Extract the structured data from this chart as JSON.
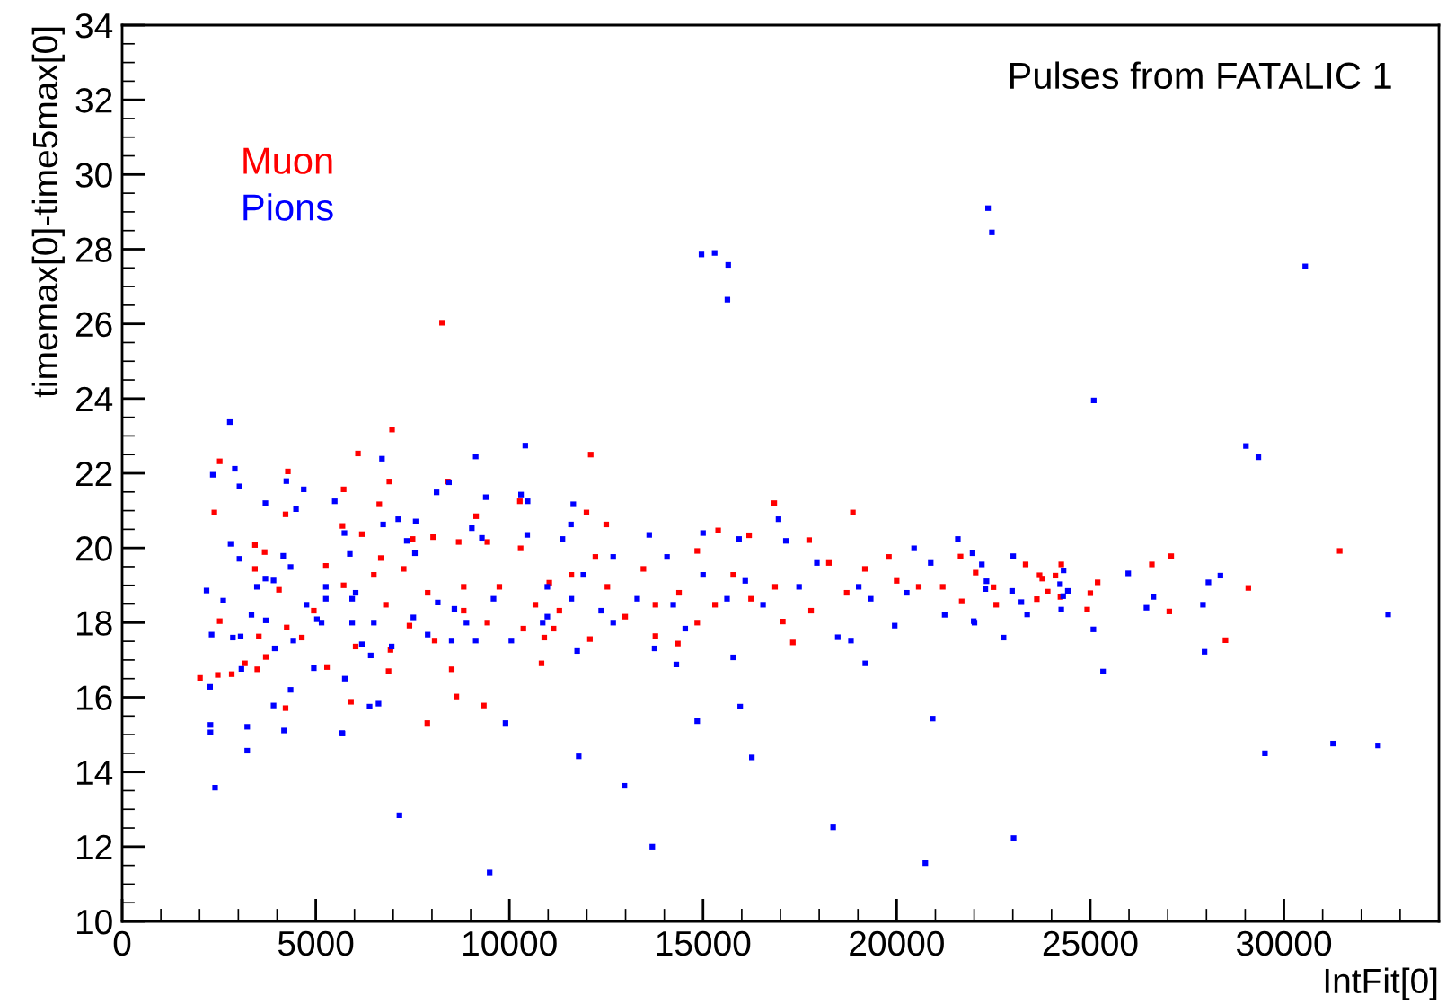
{
  "chart_data": {
    "type": "scatter",
    "title": "Pulses from FATALIC 1",
    "xlabel": "IntFit[0]",
    "ylabel": "timemax[0]-time5max[0]",
    "xlim": [
      0,
      34000
    ],
    "ylim": [
      10,
      34
    ],
    "xticks": [
      0,
      5000,
      10000,
      15000,
      20000,
      25000,
      30000
    ],
    "yticks": [
      10,
      12,
      14,
      16,
      18,
      20,
      22,
      24,
      26,
      28,
      30,
      32,
      34
    ],
    "grid": false,
    "legend": "top left",
    "marker": "square",
    "series": [
      {
        "name": "Muon",
        "color": "#ff0000",
        "x": [
          8260,
          31440,
          28490,
          7880,
          6970,
          6090,
          2520,
          2380,
          4280,
          6900,
          5720,
          8410,
          10270,
          6640,
          4220,
          3430,
          3680,
          3430,
          4050,
          5260,
          5690,
          6190,
          6680,
          7500,
          8030,
          8690,
          9140,
          9430,
          10290,
          2010,
          2520,
          2470,
          2830,
          3170,
          3490,
          3710,
          3530,
          4250,
          4220,
          5910,
          6880,
          6930,
          8630,
          9340,
          8510,
          8070,
          7420,
          6030,
          5290,
          4640,
          4950,
          5720,
          6500,
          7270,
          7890,
          8820,
          9740,
          10670,
          10360,
          9430,
          8820,
          6810,
          11030,
          10900,
          12100,
          16840,
          18870,
          11990,
          12500,
          15390,
          16190,
          17740,
          10830,
          17320,
          14350,
          13770,
          12080,
          17060,
          21650,
          21680,
          20000,
          20570,
          19180,
          18250,
          18710,
          17790,
          16860,
          16240,
          15780,
          15310,
          14850,
          14380,
          13770,
          13460,
          12990,
          12530,
          12220,
          11600,
          11290,
          11140,
          14850,
          19800,
          21190,
          22040,
          22500,
          23330,
          23690,
          23760,
          24100,
          24250,
          23900,
          23620,
          22570,
          24230,
          25190,
          25000,
          24920,
          26590,
          27090,
          27040,
          29080
        ],
        "values": [
          26.03,
          19.92,
          17.53,
          15.31,
          23.17,
          22.53,
          22.32,
          20.95,
          22.05,
          21.78,
          21.57,
          21.78,
          21.25,
          21.17,
          20.9,
          20.08,
          19.89,
          19.44,
          18.88,
          19.52,
          20.59,
          20.37,
          19.73,
          20.24,
          20.29,
          20.16,
          20.85,
          20.16,
          19.99,
          16.52,
          18.04,
          16.6,
          16.62,
          16.91,
          16.75,
          17.08,
          17.63,
          17.87,
          15.71,
          15.88,
          16.7,
          17.27,
          16.02,
          15.78,
          16.75,
          17.52,
          17.92,
          17.36,
          16.81,
          17.6,
          18.32,
          19.0,
          19.28,
          19.44,
          18.8,
          18.96,
          18.96,
          18.48,
          17.84,
          18.0,
          18.32,
          18.48,
          19.07,
          17.6,
          22.5,
          21.2,
          20.95,
          20.95,
          20.63,
          20.47,
          20.34,
          20.21,
          16.91,
          17.47,
          17.44,
          17.64,
          17.56,
          18.03,
          19.77,
          18.57,
          19.12,
          18.96,
          19.44,
          19.6,
          18.8,
          18.32,
          18.96,
          18.64,
          19.28,
          18.48,
          18.0,
          18.8,
          18.48,
          19.44,
          18.16,
          18.96,
          19.76,
          19.28,
          18.32,
          17.84,
          19.92,
          19.76,
          18.96,
          19.34,
          18.95,
          19.56,
          19.27,
          19.18,
          19.26,
          19.56,
          18.83,
          18.63,
          18.48,
          18.69,
          19.08,
          18.79,
          18.35,
          19.56,
          19.78,
          18.3,
          18.93
        ]
      },
      {
        "name": "Pions",
        "color": "#0000ff",
        "x": [
          2780,
          15300,
          22360,
          22460,
          14960,
          15650,
          15630,
          30550,
          25090,
          29020,
          29340,
          32690,
          25330,
          27950,
          31270,
          32430,
          29510,
          2400,
          7160,
          9490,
          12970,
          13690,
          18360,
          20740,
          23020,
          11790,
          16260,
          3230,
          2280,
          2280,
          3230,
          4180,
          5680,
          9900,
          14850,
          20930,
          2910,
          2340,
          3030,
          3700,
          2800,
          3030,
          2180,
          2610,
          2310,
          2860,
          3340,
          3060,
          3080,
          2270,
          3480,
          3700,
          4490,
          4690,
          4240,
          4160,
          4350,
          3910,
          3710,
          3940,
          4950,
          3910,
          4350,
          5030,
          5260,
          5490,
          5740,
          5880,
          5940,
          5940,
          6190,
          5750,
          6390,
          6620,
          5690,
          6710,
          6740,
          7130,
          7350,
          7560,
          7580,
          8120,
          8440,
          9130,
          10410,
          10300,
          10470,
          10460,
          9030,
          9290,
          9390,
          8150,
          8890,
          7890,
          6960,
          6420,
          7520,
          8580,
          9590,
          10980,
          10860,
          10050,
          9130,
          8510,
          6500,
          6030,
          5260,
          4760,
          5150,
          4420,
          11650,
          11590,
          16950,
          21580,
          20450,
          17140,
          14310,
          15780,
          15960,
          19190,
          18480,
          18820,
          19950,
          21240,
          21990,
          11750,
          13750,
          13610,
          15000,
          15930,
          11370,
          12680,
          14070,
          13300,
          14230,
          15620,
          16550,
          17480,
          19020,
          19330,
          20260,
          12370,
          11600,
          10980,
          14540,
          12680,
          11910,
          15000,
          16090,
          17940,
          20880,
          21960,
          23010,
          22200,
          22320,
          22290,
          22980,
          23220,
          23370,
          22010,
          22760,
          24310,
          24220,
          24420,
          24300,
          24250,
          25080,
          25980,
          26630,
          26450,
          28050,
          27910,
          28360
        ],
        "values": [
          23.37,
          27.9,
          29.1,
          28.45,
          27.86,
          27.58,
          26.65,
          27.54,
          23.95,
          22.73,
          22.43,
          18.22,
          16.69,
          17.22,
          14.76,
          14.71,
          14.5,
          13.58,
          12.84,
          11.31,
          13.63,
          12.0,
          12.52,
          11.56,
          12.23,
          14.42,
          14.39,
          14.57,
          15.06,
          15.26,
          15.21,
          15.11,
          15.04,
          15.31,
          15.36,
          15.43,
          22.12,
          21.96,
          21.65,
          21.2,
          20.11,
          19.71,
          18.86,
          18.59,
          17.68,
          17.6,
          18.21,
          17.63,
          16.76,
          16.28,
          18.96,
          19.18,
          21.04,
          21.57,
          21.79,
          19.79,
          19.49,
          19.13,
          18.06,
          17.31,
          16.78,
          15.78,
          16.2,
          18.09,
          18.96,
          21.25,
          20.4,
          19.84,
          18.64,
          18.0,
          17.42,
          16.5,
          15.75,
          15.83,
          15.03,
          22.39,
          20.63,
          20.77,
          20.19,
          19.86,
          20.71,
          21.49,
          21.76,
          22.45,
          22.74,
          21.43,
          21.25,
          20.35,
          20.53,
          20.27,
          21.36,
          18.54,
          18.0,
          17.68,
          17.36,
          17.12,
          18.14,
          18.37,
          18.64,
          18.96,
          18.0,
          17.52,
          17.52,
          17.52,
          18.0,
          18.8,
          18.64,
          18.48,
          18.0,
          17.52,
          21.17,
          20.63,
          20.77,
          20.24,
          19.99,
          20.19,
          16.88,
          17.07,
          15.75,
          16.91,
          17.61,
          17.52,
          17.92,
          18.21,
          18.04,
          17.24,
          17.31,
          20.35,
          20.4,
          20.24,
          20.24,
          19.76,
          19.76,
          18.64,
          18.48,
          18.64,
          18.48,
          18.96,
          18.96,
          18.64,
          18.8,
          18.32,
          18.64,
          18.16,
          17.84,
          18.0,
          19.28,
          19.28,
          19.12,
          19.6,
          19.6,
          19.86,
          19.78,
          19.56,
          19.11,
          18.9,
          18.85,
          18.55,
          18.22,
          18.0,
          17.6,
          19.4,
          19.03,
          18.85,
          18.71,
          18.35,
          17.82,
          19.32,
          18.69,
          18.4,
          19.08,
          18.48,
          19.26
        ]
      }
    ]
  }
}
